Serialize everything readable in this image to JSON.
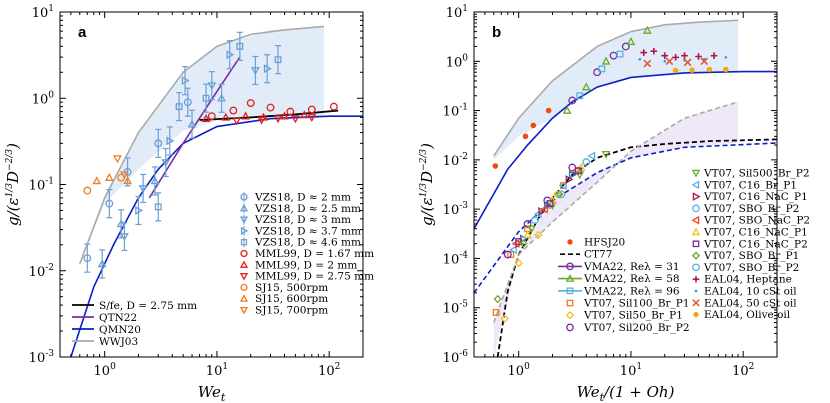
{
  "chart_data": [
    {
      "panel": "a",
      "type": "scatter",
      "xlabel": "We_t",
      "ylabel": "g/(ε^{1/3} D^{-2/3})",
      "xscale": "log",
      "yscale": "log",
      "xlim": [
        0.4,
        200
      ],
      "ylim": [
        0.001,
        10
      ],
      "xticklabels": [
        "10^0",
        "10^1",
        "10^2"
      ],
      "yticklabels": [
        "10^-3",
        "10^-2",
        "10^-1",
        "10^0",
        "10^1"
      ],
      "legend_position": "bottom-right",
      "shaded_region": {
        "color": "#dde9f8",
        "x": [
          0.6,
          1.0,
          2.0,
          5.0,
          10,
          30,
          90
        ],
        "upper": [
          0.012,
          0.07,
          0.4,
          2.0,
          4.0,
          6.2,
          6.7
        ],
        "lower": [
          0.012,
          0.06,
          0.15,
          0.42,
          0.55,
          0.6,
          0.62
        ]
      },
      "curves": [
        {
          "name": "WWJ03",
          "color": "#aaaaaa",
          "x": [
            0.6,
            1.0,
            2.0,
            5.0,
            10,
            20,
            40,
            90
          ],
          "y": [
            0.012,
            0.07,
            0.4,
            2.0,
            4.0,
            5.5,
            6.2,
            6.8
          ]
        },
        {
          "name": "QMN20",
          "color": "#0a1fc4",
          "x": [
            0.5,
            0.8,
            1.2,
            2.0,
            3.0,
            5.0,
            10,
            30,
            100,
            200
          ],
          "y": [
            0.001,
            0.0065,
            0.02,
            0.07,
            0.15,
            0.3,
            0.47,
            0.58,
            0.62,
            0.62
          ]
        },
        {
          "name": "QTN22",
          "color": "#7b2d9e",
          "x": [
            2.5,
            5.0,
            10,
            16
          ],
          "y": [
            0.07,
            0.3,
            1.2,
            3.0
          ]
        },
        {
          "name": "S/f_e, D = 2.75 mm",
          "color": "#000000",
          "x": [
            7,
            20,
            50,
            120
          ],
          "y": [
            0.56,
            0.6,
            0.65,
            0.72
          ]
        }
      ],
      "series": [
        {
          "name": "VZS18, D ≈ 2 mm",
          "marker": "circle",
          "color": "#6a9ed6",
          "x": [
            0.7,
            1.1,
            1.6,
            3.0,
            5.5
          ],
          "y": [
            0.014,
            0.06,
            0.14,
            0.3,
            0.9
          ]
        },
        {
          "name": "VZS18, D ≈ 2.5 mm",
          "marker": "triangle-up",
          "color": "#6a9ed6",
          "x": [
            0.95,
            1.4,
            2.8,
            6.0,
            11
          ],
          "y": [
            0.012,
            0.035,
            0.11,
            0.5,
            1.0
          ]
        },
        {
          "name": "VZS18, D ≈ 3 mm",
          "marker": "triangle-down",
          "color": "#6a9ed6",
          "x": [
            1.5,
            2.2,
            3.5,
            9.0,
            22
          ],
          "y": [
            0.025,
            0.09,
            0.18,
            1.4,
            2.1
          ]
        },
        {
          "name": "VZS18, D ≈ 3.7 mm",
          "marker": "triangle-right",
          "color": "#6a9ed6",
          "x": [
            2.0,
            3.8,
            5.2,
            13,
            28
          ],
          "y": [
            0.05,
            0.32,
            1.6,
            3.2,
            2.2
          ]
        },
        {
          "name": "VZS18, D ≈ 4.6 mm",
          "marker": "square",
          "color": "#6a9ed6",
          "x": [
            3.0,
            4.6,
            8.0,
            16,
            35
          ],
          "y": [
            0.055,
            0.8,
            1.0,
            4.0,
            2.8
          ]
        },
        {
          "name": "MML99, D = 1.67 mm",
          "marker": "circle",
          "color": "#e3201b",
          "x": [
            9,
            14,
            20,
            30,
            45,
            70,
            110
          ],
          "y": [
            0.62,
            0.72,
            0.88,
            0.78,
            0.7,
            0.74,
            0.8
          ]
        },
        {
          "name": "MML99, D = 2 mm",
          "marker": "triangle-up",
          "color": "#e3201b",
          "x": [
            8,
            12,
            18,
            26,
            40,
            60
          ],
          "y": [
            0.58,
            0.6,
            0.62,
            0.6,
            0.62,
            0.64
          ]
        },
        {
          "name": "MML99, D = 2.75 mm",
          "marker": "triangle-down",
          "color": "#e3201b",
          "x": [
            15,
            25,
            35,
            50,
            70
          ],
          "y": [
            0.55,
            0.56,
            0.58,
            0.58,
            0.6
          ]
        },
        {
          "name": "SJ15, 500rpm",
          "marker": "circle",
          "color": "#f07c1e",
          "x": [
            0.7,
            1.4
          ],
          "y": [
            0.085,
            0.12
          ]
        },
        {
          "name": "SJ15, 600rpm",
          "marker": "triangle-up",
          "color": "#f07c1e",
          "x": [
            0.85,
            1.1,
            1.6
          ],
          "y": [
            0.11,
            0.12,
            0.11
          ]
        },
        {
          "name": "SJ15, 700rpm",
          "marker": "triangle-down",
          "color": "#f07c1e",
          "x": [
            1.3,
            1.5
          ],
          "y": [
            0.2,
            0.13
          ]
        }
      ]
    },
    {
      "panel": "b",
      "type": "scatter",
      "xlabel": "We_t/(1 + Oh)",
      "ylabel": "g/(ε^{1/3} D^{-2/3})",
      "xscale": "log",
      "yscale": "log",
      "xlim": [
        0.4,
        200
      ],
      "ylim": [
        1e-06,
        10
      ],
      "xticklabels": [
        "10^0",
        "10^1",
        "10^2"
      ],
      "yticklabels": [
        "10^-6",
        "10^-5",
        "10^-4",
        "10^-3",
        "10^-2",
        "10^-1",
        "10^0",
        "10^1"
      ],
      "legend_position": "bottom-right",
      "curves": [
        {
          "name": "gray upper",
          "color": "#aaaaaa",
          "x": [
            0.6,
            1.0,
            2.0,
            5.0,
            10,
            20,
            40,
            90
          ],
          "y": [
            0.012,
            0.07,
            0.4,
            2.0,
            4.0,
            5.5,
            6.2,
            6.8
          ]
        },
        {
          "name": "blue solid",
          "color": "#0a1fc4",
          "x": [
            0.4,
            0.8,
            1.2,
            2.0,
            3.0,
            5.0,
            10,
            30,
            100,
            200
          ],
          "y": [
            0.0004,
            0.0065,
            0.02,
            0.07,
            0.15,
            0.3,
            0.47,
            0.58,
            0.62,
            0.62
          ]
        },
        {
          "name": "CT77",
          "color": "#000000",
          "x": [
            0.65,
            0.8,
            1.0,
            1.5,
            2.0,
            3.0,
            5.0,
            10,
            20,
            50,
            200
          ],
          "y": [
            1e-06,
            2.2e-05,
            0.00012,
            0.00065,
            0.0017,
            0.005,
            0.011,
            0.018,
            0.021,
            0.024,
            0.026
          ]
        },
        {
          "name": "blue dashed",
          "color": "#0a1fc4",
          "x": [
            0.4,
            1.0,
            2.0,
            5.0,
            10,
            30,
            200
          ],
          "y": [
            2e-05,
            0.00035,
            0.0015,
            0.0055,
            0.011,
            0.018,
            0.022
          ]
        },
        {
          "name": "gray dashed",
          "color": "#aaaaaa",
          "x": [
            0.6,
            1.0,
            2.0,
            5.0,
            10,
            30,
            90
          ],
          "y": [
            5e-06,
            0.00012,
            0.00055,
            0.0035,
            0.015,
            0.07,
            0.15
          ]
        }
      ],
      "series": [
        {
          "name": "HFSJ20",
          "marker": "circle-filled",
          "color": "#f14a14",
          "x": [
            0.62,
            1.15,
            1.35,
            1.85
          ],
          "y": [
            0.0075,
            0.03,
            0.05,
            0.1
          ]
        },
        {
          "name": "VMA22, Re_λ = 31",
          "marker": "circle",
          "color": "#7b2d9e",
          "x": [
            3.0,
            5.0,
            7.0,
            9.0
          ],
          "y": [
            0.16,
            0.6,
            1.3,
            2.0
          ]
        },
        {
          "name": "VMA22, Re_λ = 58",
          "marker": "triangle-up",
          "color": "#6aaa2a",
          "x": [
            2.7,
            4.0,
            6.0,
            10.0,
            14.0
          ],
          "y": [
            0.1,
            0.3,
            1.0,
            2.5,
            4.2
          ]
        },
        {
          "name": "VMA22, Re_λ = 96",
          "marker": "square",
          "color": "#58b1e6",
          "x": [
            3.5,
            5.5,
            8.0
          ],
          "y": [
            0.2,
            0.7,
            1.4
          ]
        },
        {
          "name": "VT07, Sil100_Br_P1",
          "marker": "square",
          "color": "#f07c1e",
          "x": [
            0.63,
            0.85,
            1.2,
            1.8,
            2.5
          ],
          "y": [
            8e-06,
            0.00012,
            0.0004,
            0.0012,
            0.003
          ]
        },
        {
          "name": "VT07, Sil50_Br_P1",
          "marker": "diamond",
          "color": "#f2c21b",
          "x": [
            0.75,
            1.0,
            1.5,
            2.2
          ],
          "y": [
            6e-06,
            8e-05,
            0.0003,
            0.002
          ]
        },
        {
          "name": "VT07, Sil200_Br_P2",
          "marker": "circle",
          "color": "#7b2d9e",
          "x": [
            0.8,
            1.2,
            1.8,
            3.0
          ],
          "y": [
            0.00012,
            0.0005,
            0.0015,
            0.007
          ]
        },
        {
          "name": "VT07, Sil500_Br_P2",
          "marker": "triangle-down",
          "color": "#6aaa2a",
          "x": [
            1.3,
            2.0,
            3.5,
            6.0
          ],
          "y": [
            0.0004,
            0.0012,
            0.005,
            0.013
          ]
        },
        {
          "name": "VT07, C16_Br_P1",
          "marker": "triangle-left",
          "color": "#58b1e6",
          "x": [
            0.9,
            1.5,
            2.5,
            4.5
          ],
          "y": [
            0.00015,
            0.0008,
            0.003,
            0.012
          ]
        },
        {
          "name": "VT07, C16_NaC_P1",
          "marker": "triangle-right",
          "color": "#b0164b",
          "x": [
            1.0,
            1.6,
            2.8
          ],
          "y": [
            0.0002,
            0.0009,
            0.004
          ]
        },
        {
          "name": "VT07, SBO_Br_P2",
          "marker": "triangle-right",
          "color": "#1e6fc4",
          "x": [
            1.1,
            1.8,
            3.0
          ],
          "y": [
            0.00025,
            0.0012,
            0.005
          ]
        },
        {
          "name": "VT07, SBO_NaC_P2",
          "marker": "triangle-left",
          "color": "#f14a14",
          "x": [
            0.95,
            1.7,
            3.2
          ],
          "y": [
            0.0002,
            0.001,
            0.006
          ]
        },
        {
          "name": "VT07, C16_NaC_P1 (yellow)",
          "marker": "triangle-up",
          "color": "#f2c21b",
          "x": [
            1.2,
            2.0,
            3.6
          ],
          "y": [
            0.0003,
            0.0015,
            0.007
          ]
        },
        {
          "name": "VT07, C16_NaC_P2",
          "marker": "square",
          "color": "#7b2d9e",
          "x": [
            1.0,
            1.9,
            3.4
          ],
          "y": [
            0.00022,
            0.0013,
            0.006
          ]
        },
        {
          "name": "VT07, SBO_Br_P1",
          "marker": "diamond",
          "color": "#6aaa2a",
          "x": [
            0.65,
            1.1,
            2.3
          ],
          "y": [
            1.5e-05,
            0.0002,
            0.002
          ]
        },
        {
          "name": "VT07, SBO_Br_P2",
          "marker": "circle",
          "color": "#58b1e6",
          "x": [
            1.4,
            2.4,
            4.0
          ],
          "y": [
            0.0006,
            0.002,
            0.009
          ]
        },
        {
          "name": "EAL04, Heptane",
          "marker": "plus",
          "color": "#b0164b",
          "x": [
            13,
            16,
            20,
            25,
            30,
            40,
            55
          ],
          "y": [
            1.5,
            1.6,
            1.3,
            1.2,
            1.3,
            1.25,
            1.3
          ]
        },
        {
          "name": "EAL04, 10 cSt oil",
          "marker": "dot",
          "color": "#1e9fd6",
          "x": [
            12,
            20,
            30,
            45,
            70
          ],
          "y": [
            1.1,
            1.0,
            1.05,
            1.1,
            1.2
          ]
        },
        {
          "name": "EAL04, 50 cSt oil",
          "marker": "x",
          "color": "#e3502b",
          "x": [
            14,
            22,
            32,
            45
          ],
          "y": [
            0.9,
            1.0,
            0.95,
            1.0
          ]
        },
        {
          "name": "EAL04, Olive oil",
          "marker": "circle-filled",
          "color": "#f2a71b",
          "x": [
            25,
            35,
            50,
            70
          ],
          "y": [
            0.65,
            0.66,
            0.68,
            0.68
          ]
        }
      ]
    }
  ],
  "panels": {
    "a": {
      "label": "a",
      "xlabel": "We",
      "xlabel_sub": "t",
      "ylabel": "g/(ε",
      "xticks": [
        {
          "base": "10",
          "exp": "0"
        },
        {
          "base": "10",
          "exp": "1"
        },
        {
          "base": "10",
          "exp": "2"
        }
      ],
      "yticks": [
        {
          "base": "10",
          "exp": "-3"
        },
        {
          "base": "10",
          "exp": "-2"
        },
        {
          "base": "10",
          "exp": "-1"
        },
        {
          "base": "10",
          "exp": "0"
        },
        {
          "base": "10",
          "exp": "1"
        }
      ],
      "legend1": [
        "VZS18, D ≈ 2 mm",
        "VZS18, D ≈ 2.5 mm",
        "VZS18, D ≈ 3 mm",
        "VZS18, D ≈ 3.7 mm",
        "VZS18, D ≈ 4.6 mm",
        "MML99, D = 1.67 mm",
        "MML99, D = 2 mm",
        "MML99, D = 2.75 mm",
        "SJ15, 500rpm",
        "SJ15, 600rpm",
        "SJ15, 700rpm"
      ],
      "legend2": [
        "S/fe, D = 2.75 mm",
        "QTN22",
        "QMN20",
        "WWJ03"
      ]
    },
    "b": {
      "label": "b",
      "xlabel": "We",
      "xlabel_sub": "t",
      "xlabel_tail": "/(1 + Oh)",
      "yticks": [
        {
          "base": "10",
          "exp": "-6"
        },
        {
          "base": "10",
          "exp": "-5"
        },
        {
          "base": "10",
          "exp": "-4"
        },
        {
          "base": "10",
          "exp": "-3"
        },
        {
          "base": "10",
          "exp": "-2"
        },
        {
          "base": "10",
          "exp": "-1"
        },
        {
          "base": "10",
          "exp": "0"
        },
        {
          "base": "10",
          "exp": "1"
        }
      ],
      "legend_left": [
        "HFSJ20",
        "CT77",
        "VMA22, Reλ = 31",
        "VMA22, Reλ = 58",
        "VMA22, Reλ = 96",
        "VT07, Sil100_Br_P1",
        "VT07, Sil50_Br_P1",
        "VT07, Sil200_Br_P2"
      ],
      "legend_right": [
        "VT07, Sil500_Br_P2",
        "VT07, C16_Br_P1",
        "VT07, C16_NaC_P1",
        "VT07, SBO_Br_P2",
        "VT07, SBO_NaC_P2",
        "VT07, C16_NaC_P1",
        "VT07, C16_NaC_P2",
        "VT07, SBO_Br_P1",
        "VT07, SBO_Br_P2",
        "EAL04, Heptane",
        "EAL04, 10 cSt oil",
        "EAL04, 50 cSt oil",
        "EAL04, Olive oil"
      ]
    }
  }
}
